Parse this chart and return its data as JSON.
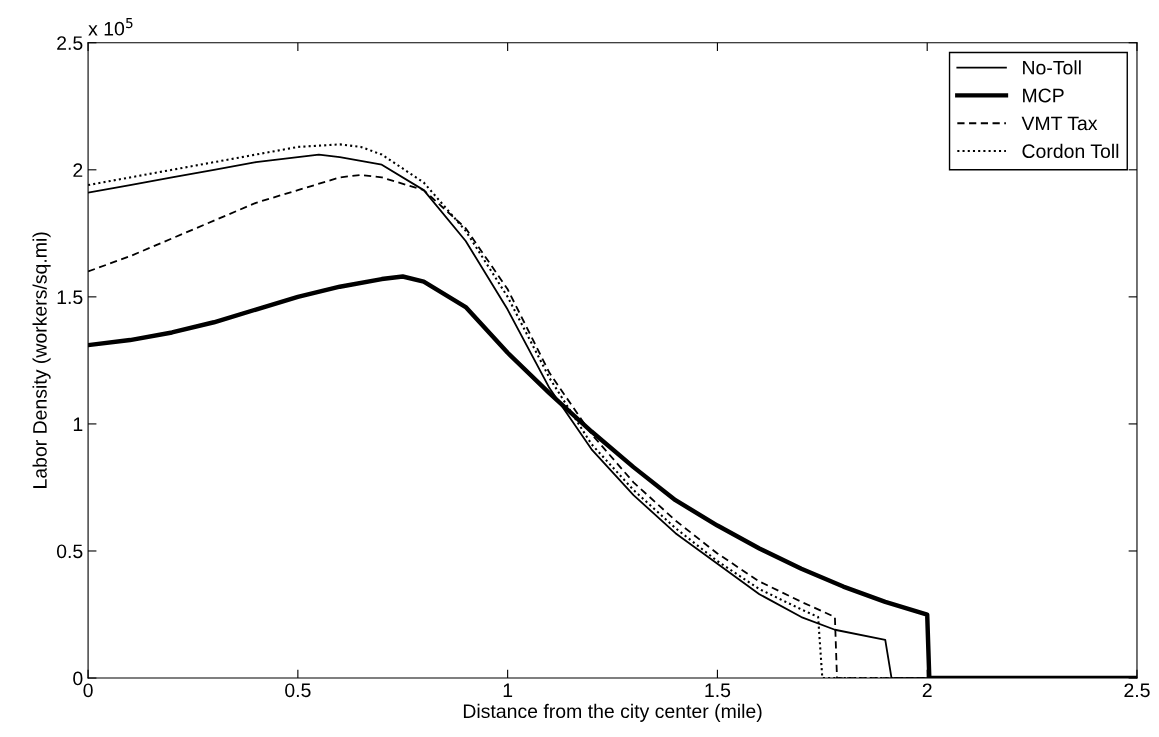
{
  "chart_data": {
    "type": "line",
    "xlabel": "Distance from the city center (mile)",
    "ylabel": "Labor Density (workers/sq.mi)",
    "annotations": [
      "x 10$^{5}$"
    ],
    "xlim": [
      0,
      2.5
    ],
    "xticks": [
      0,
      0.5,
      1,
      1.5,
      2,
      2.5
    ],
    "ylim": [
      0,
      2.5
    ],
    "yticks": [
      0,
      0.5,
      1,
      1.5,
      2,
      2.5
    ],
    "grid": false,
    "legend": "top right",
    "marker": "none",
    "series": [
      {
        "name": "No-Toll",
        "color": "#000000",
        "line_style": "solid",
        "x": [
          0,
          0.1,
          0.2,
          0.3,
          0.4,
          0.5,
          0.55,
          0.6,
          0.7,
          0.8,
          0.9,
          1.0,
          1.1,
          1.2,
          1.3,
          1.4,
          1.5,
          1.6,
          1.7,
          1.78,
          1.9,
          1.915,
          2.5
        ],
        "values": [
          1.91,
          1.94,
          1.97,
          2.0,
          2.03,
          2.05,
          2.06,
          2.05,
          2.02,
          1.92,
          1.72,
          1.45,
          1.14,
          0.9,
          0.72,
          0.57,
          0.45,
          0.33,
          0.24,
          0.19,
          0.15,
          0,
          0
        ]
      },
      {
        "name": "MCP",
        "color": "#000000",
        "line_style": "solid",
        "x": [
          0,
          0.1,
          0.2,
          0.3,
          0.4,
          0.5,
          0.6,
          0.7,
          0.75,
          0.8,
          0.9,
          1.0,
          1.1,
          1.2,
          1.3,
          1.4,
          1.5,
          1.6,
          1.7,
          1.8,
          1.9,
          2.0,
          2.005,
          2.5
        ],
        "values": [
          1.31,
          1.33,
          1.36,
          1.4,
          1.45,
          1.5,
          1.54,
          1.57,
          1.58,
          1.56,
          1.46,
          1.28,
          1.12,
          0.97,
          0.83,
          0.7,
          0.6,
          0.51,
          0.43,
          0.36,
          0.3,
          0.25,
          0,
          0
        ]
      },
      {
        "name": "VMT Tax",
        "color": "#000000",
        "line_style": "dashed",
        "x": [
          0,
          0.1,
          0.2,
          0.3,
          0.4,
          0.5,
          0.6,
          0.65,
          0.7,
          0.8,
          0.9,
          1.0,
          1.1,
          1.2,
          1.3,
          1.4,
          1.5,
          1.6,
          1.7,
          1.78,
          1.785,
          2.5
        ],
        "values": [
          1.6,
          1.66,
          1.73,
          1.8,
          1.87,
          1.92,
          1.97,
          1.98,
          1.97,
          1.92,
          1.77,
          1.53,
          1.2,
          0.96,
          0.77,
          0.62,
          0.49,
          0.38,
          0.3,
          0.24,
          0,
          0
        ]
      },
      {
        "name": "Cordon Toll",
        "color": "#000000",
        "line_style": "dotted",
        "x": [
          0,
          0.1,
          0.2,
          0.3,
          0.4,
          0.5,
          0.6,
          0.65,
          0.7,
          0.8,
          0.9,
          1.0,
          1.1,
          1.2,
          1.3,
          1.4,
          1.5,
          1.6,
          1.7,
          1.74,
          1.75,
          2.5
        ],
        "values": [
          1.94,
          1.97,
          2.0,
          2.03,
          2.06,
          2.09,
          2.1,
          2.09,
          2.06,
          1.95,
          1.76,
          1.5,
          1.18,
          0.92,
          0.74,
          0.59,
          0.46,
          0.35,
          0.27,
          0.24,
          0,
          0
        ]
      }
    ]
  }
}
